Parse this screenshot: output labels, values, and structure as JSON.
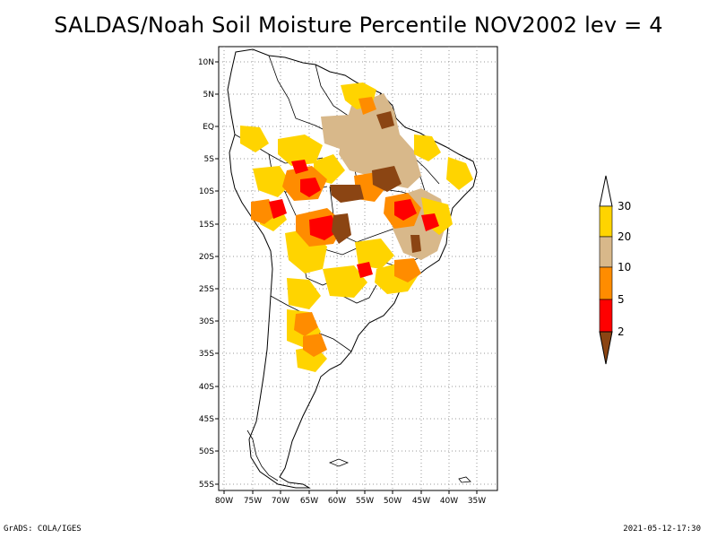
{
  "title": "SALDAS/Noah Soil Moisture Percentile NOV2002 lev = 4",
  "footer": {
    "left": "GrADS: COLA/IGES",
    "right": "2021-05-12-17:30"
  },
  "map": {
    "lon_labels": [
      "80W",
      "75W",
      "70W",
      "65W",
      "60W",
      "55W",
      "50W",
      "45W",
      "40W",
      "35W"
    ],
    "lat_labels": [
      "10N",
      "5N",
      "EQ",
      "5S",
      "10S",
      "15S",
      "20S",
      "25S",
      "30S",
      "35S",
      "40S",
      "45S",
      "50S",
      "55S"
    ]
  },
  "colorbar": {
    "labels": [
      "30",
      "20",
      "10",
      "5",
      "2"
    ],
    "colors": {
      "above_30": "#ffffff",
      "20_30": "#ffd400",
      "10_20": "#d8b88a",
      "5_10": "#ff8c00",
      "2_5": "#ff0000",
      "below_2": "#8b4513"
    }
  }
}
